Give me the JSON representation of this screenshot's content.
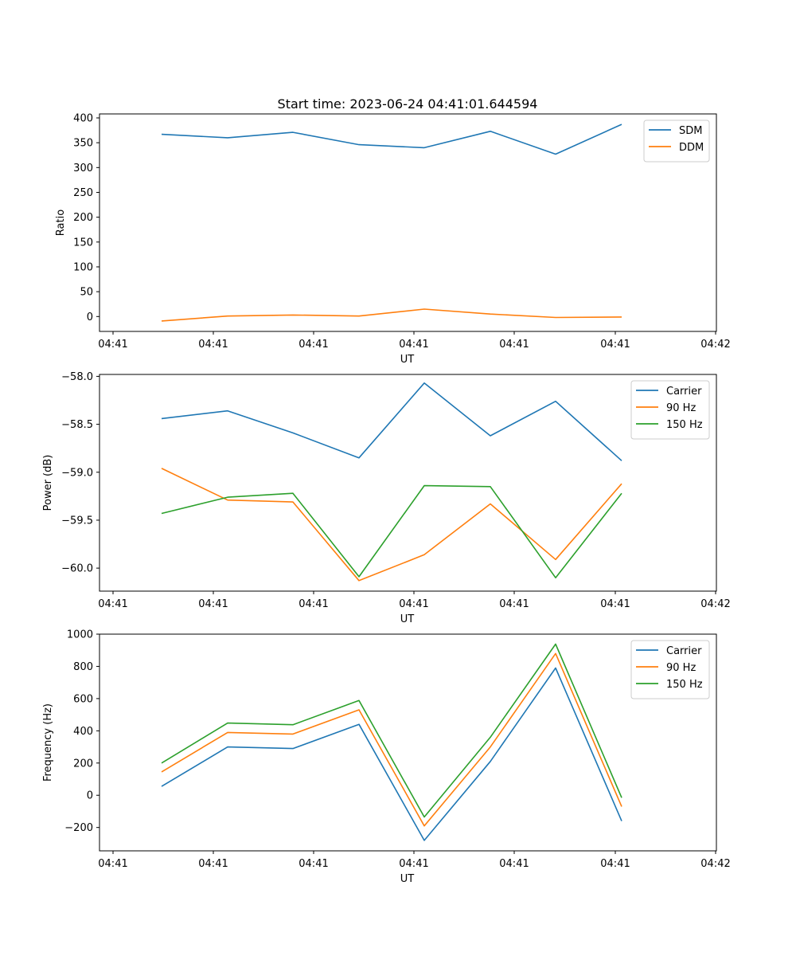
{
  "title": "Start time: 2023-06-24 04:41:01.644594",
  "colors": {
    "blue": "#1f77b4",
    "orange": "#ff7f0e",
    "green": "#2ca02c"
  },
  "chart_data": [
    {
      "type": "line",
      "title": "Start time: 2023-06-24 04:41:01.644594",
      "xlabel": "UT",
      "ylabel": "Ratio",
      "x_ticks": [
        "04:41",
        "04:41",
        "04:41",
        "04:41",
        "04:41",
        "04:41",
        "04:42"
      ],
      "ylim": [
        -30,
        408
      ],
      "y_ticks": [
        0,
        50,
        100,
        150,
        200,
        250,
        300,
        350,
        400
      ],
      "legend_position": "top-right",
      "grid": false,
      "series": [
        {
          "name": "SDM",
          "color": "#1f77b4",
          "values": [
            367,
            360,
            371,
            346,
            340,
            373,
            327,
            387
          ]
        },
        {
          "name": "DDM",
          "color": "#ff7f0e",
          "values": [
            -9,
            1,
            3,
            1,
            15,
            5,
            -2,
            -1
          ]
        }
      ]
    },
    {
      "type": "line",
      "xlabel": "UT",
      "ylabel": "Power (dB)",
      "x_ticks": [
        "04:41",
        "04:41",
        "04:41",
        "04:41",
        "04:41",
        "04:41",
        "04:42"
      ],
      "ylim": [
        -60.24,
        -57.98
      ],
      "y_ticks": [
        -60.0,
        -59.5,
        -59.0,
        -58.5,
        -58.0
      ],
      "y_tick_labels": [
        "−60.0",
        "−59.5",
        "−59.0",
        "−58.5",
        "−58.0"
      ],
      "legend_position": "top-right",
      "grid": false,
      "series": [
        {
          "name": "Carrier",
          "color": "#1f77b4",
          "values": [
            -58.44,
            -58.36,
            -58.59,
            -58.85,
            -58.07,
            -58.62,
            -58.26,
            -58.88
          ]
        },
        {
          "name": "90 Hz",
          "color": "#ff7f0e",
          "values": [
            -58.96,
            -59.29,
            -59.31,
            -60.13,
            -59.86,
            -59.33,
            -59.91,
            -59.12
          ]
        },
        {
          "name": "150 Hz",
          "color": "#2ca02c",
          "values": [
            -59.43,
            -59.26,
            -59.22,
            -60.09,
            -59.14,
            -59.15,
            -60.1,
            -59.22
          ]
        }
      ]
    },
    {
      "type": "line",
      "xlabel": "UT",
      "ylabel": "Frequency (Hz)",
      "x_ticks": [
        "04:41",
        "04:41",
        "04:41",
        "04:41",
        "04:41",
        "04:41",
        "04:42"
      ],
      "ylim": [
        -345,
        1000
      ],
      "y_ticks": [
        -200,
        0,
        200,
        400,
        600,
        800,
        1000
      ],
      "y_tick_labels": [
        "−200",
        "0",
        "200",
        "400",
        "600",
        "800",
        "1000"
      ],
      "legend_position": "top-right",
      "grid": false,
      "series": [
        {
          "name": "Carrier",
          "color": "#1f77b4",
          "values": [
            55,
            300,
            290,
            440,
            -280,
            210,
            790,
            -160
          ]
        },
        {
          "name": "90 Hz",
          "color": "#ff7f0e",
          "values": [
            145,
            390,
            380,
            530,
            -190,
            300,
            880,
            -70
          ]
        },
        {
          "name": "150 Hz",
          "color": "#2ca02c",
          "values": [
            200,
            448,
            438,
            588,
            -135,
            360,
            938,
            -15
          ]
        }
      ]
    }
  ]
}
